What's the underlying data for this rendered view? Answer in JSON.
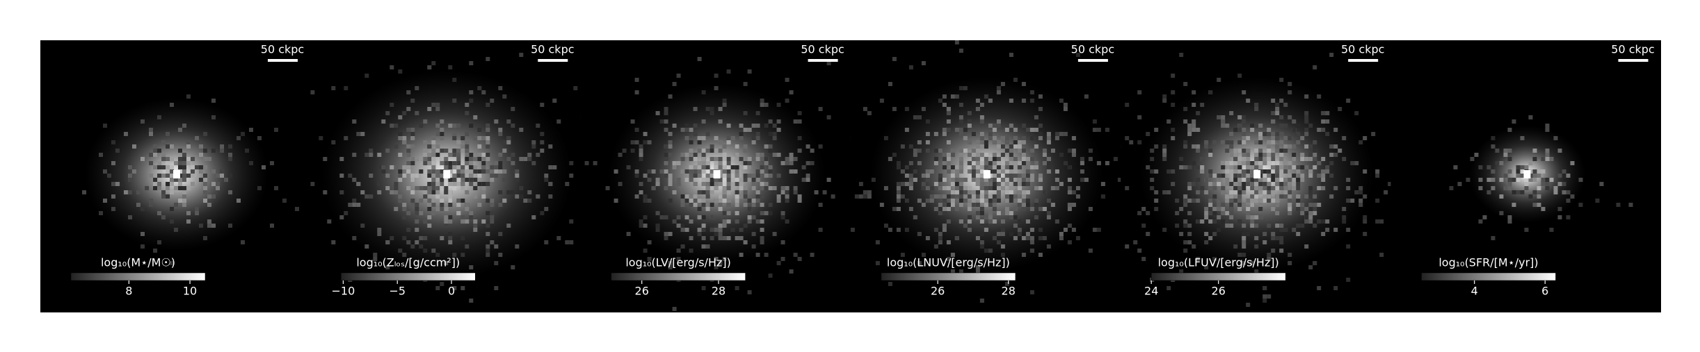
{
  "panels": [
    {
      "scale_label": "50 ckpc",
      "colorbar_label": "log₁₀(M⋆/M☉)",
      "colorbar_lim": [
        6.1,
        10.5
      ],
      "colorbar_ticks": [
        8,
        10
      ]
    },
    {
      "scale_label": "50 ckpc",
      "colorbar_label": "log₁₀(Zₗₒₛ/[g/ccm²])",
      "colorbar_lim": [
        -10.2,
        2.2
      ],
      "colorbar_ticks": [
        {
          "value": -10,
          "label": "−10"
        },
        {
          "value": -5,
          "label": "−5"
        },
        0
      ]
    },
    {
      "scale_label": "50 ckpc",
      "colorbar_label": "log₁₀(LV/[erg/s/Hz])",
      "colorbar_lim": [
        25.2,
        28.7
      ],
      "colorbar_ticks": [
        26,
        28
      ]
    },
    {
      "scale_label": "50 ckpc",
      "colorbar_label": "log₁₀(LNUV/[erg/s/Hz])",
      "colorbar_lim": [
        24.4,
        28.2
      ],
      "colorbar_ticks": [
        26,
        28
      ]
    },
    {
      "scale_label": "50 ckpc",
      "colorbar_label": "log₁₀(LFUV/[erg/s/Hz])",
      "colorbar_lim": [
        24,
        28
      ],
      "colorbar_ticks": [
        24,
        26
      ]
    },
    {
      "scale_label": "50 ckpc",
      "colorbar_label": "log₁₀(SFR/[M⋆/yr])",
      "colorbar_lim": [
        2.5,
        6.3
      ],
      "colorbar_ticks": [
        4,
        6
      ]
    }
  ]
}
